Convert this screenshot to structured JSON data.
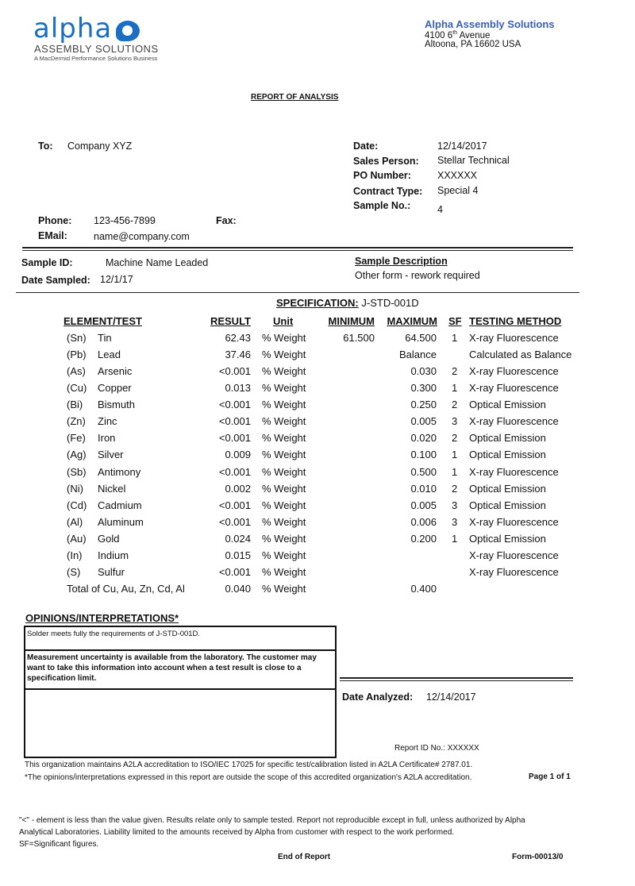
{
  "header": {
    "logo": {
      "word": "alpha",
      "sub": "ASSEMBLY SOLUTIONS",
      "tagline": "A MacDermid Performance Solutions Business"
    },
    "company": "Alpha Assembly Solutions",
    "address_line1_pre": "4100 6",
    "address_line1_sup": "th",
    "address_line1_post": " Avenue",
    "address_line2": "Altoona, PA 16602 USA",
    "brand_color": "#1a6fc4"
  },
  "title": "REPORT OF ANALYSIS",
  "customer": {
    "to_label": "To:",
    "to": "Company XYZ",
    "phone_label": "Phone:",
    "phone": "123-456-7899",
    "fax_label": "Fax:",
    "email_label": "EMail:",
    "email": "name@company.com"
  },
  "info": {
    "date_label": "Date:",
    "date": "12/14/2017",
    "sales_label": "Sales Person:",
    "sales": "Stellar Technical",
    "po_label": "PO Number:",
    "po": "XXXXXX",
    "contract_label": "Contract Type:",
    "contract": "Special 4",
    "sample_no_label": "Sample No.:",
    "sample_no": "4"
  },
  "sample": {
    "id_label": "Sample ID:",
    "id": "Machine Name Leaded",
    "date_label": "Date Sampled:",
    "date": "12/1/17",
    "desc_label": "Sample Description",
    "desc": "Other form - rework required"
  },
  "spec": {
    "label": "SPECIFICATION:",
    "value": "J-STD-001D"
  },
  "table": {
    "headers": [
      "ELEMENT/TEST",
      "RESULT",
      "Unit",
      "MINIMUM",
      "MAXIMUM",
      "SF",
      "TESTING METHOD"
    ],
    "rows": [
      {
        "code": "(Sn)",
        "name": "Tin",
        "result": "62.43",
        "unit": "% Weight",
        "min": "61.500",
        "max": "64.500",
        "sf": "1",
        "method": "X-ray Fluorescence"
      },
      {
        "code": "(Pb)",
        "name": "Lead",
        "result": "37.46",
        "unit": "% Weight",
        "min": "",
        "max": "Balance",
        "sf": "",
        "method": "Calculated as Balance"
      },
      {
        "code": "(As)",
        "name": "Arsenic",
        "result": "<0.001",
        "unit": "% Weight",
        "min": "",
        "max": "0.030",
        "sf": "2",
        "method": "X-ray Fluorescence"
      },
      {
        "code": "(Cu)",
        "name": "Copper",
        "result": "0.013",
        "unit": "% Weight",
        "min": "",
        "max": "0.300",
        "sf": "1",
        "method": "X-ray Fluorescence"
      },
      {
        "code": "(Bi)",
        "name": "Bismuth",
        "result": "<0.001",
        "unit": "% Weight",
        "min": "",
        "max": "0.250",
        "sf": "2",
        "method": "Optical Emission"
      },
      {
        "code": "(Zn)",
        "name": "Zinc",
        "result": "<0.001",
        "unit": "% Weight",
        "min": "",
        "max": "0.005",
        "sf": "3",
        "method": "X-ray Fluorescence"
      },
      {
        "code": "(Fe)",
        "name": "Iron",
        "result": "<0.001",
        "unit": "% Weight",
        "min": "",
        "max": "0.020",
        "sf": "2",
        "method": "Optical Emission"
      },
      {
        "code": "(Ag)",
        "name": "Silver",
        "result": "0.009",
        "unit": "% Weight",
        "min": "",
        "max": "0.100",
        "sf": "1",
        "method": "Optical Emission"
      },
      {
        "code": "(Sb)",
        "name": "Antimony",
        "result": "<0.001",
        "unit": "% Weight",
        "min": "",
        "max": "0.500",
        "sf": "1",
        "method": "X-ray Fluorescence"
      },
      {
        "code": "(Ni)",
        "name": "Nickel",
        "result": "0.002",
        "unit": "% Weight",
        "min": "",
        "max": "0.010",
        "sf": "2",
        "method": "Optical Emission"
      },
      {
        "code": "(Cd)",
        "name": "Cadmium",
        "result": "<0.001",
        "unit": "% Weight",
        "min": "",
        "max": "0.005",
        "sf": "3",
        "method": "Optical Emission"
      },
      {
        "code": "(Al)",
        "name": "Aluminum",
        "result": "<0.001",
        "unit": "% Weight",
        "min": "",
        "max": "0.006",
        "sf": "3",
        "method": "X-ray Fluorescence"
      },
      {
        "code": "(Au)",
        "name": "Gold",
        "result": "0.024",
        "unit": "% Weight",
        "min": "",
        "max": "0.200",
        "sf": "1",
        "method": "Optical Emission"
      },
      {
        "code": "(In)",
        "name": "Indium",
        "result": "0.015",
        "unit": "% Weight",
        "min": "",
        "max": "",
        "sf": "",
        "method": "X-ray Fluorescence"
      },
      {
        "code": "(S)",
        "name": "Sulfur",
        "result": "<0.001",
        "unit": "% Weight",
        "min": "",
        "max": "",
        "sf": "",
        "method": "X-ray Fluorescence"
      },
      {
        "code": "",
        "name": "Total of Cu, Au, Zn, Cd, Al",
        "result": "0.040",
        "unit": "% Weight",
        "min": "",
        "max": "0.400",
        "sf": "",
        "method": ""
      }
    ]
  },
  "opinions": {
    "title": "OPINIONS/INTERPRETATIONS*",
    "line1": "Solder meets fully the requirements of J-STD-001D.",
    "line2": "Measurement uncertainty is available from the laboratory. The customer may want to take this information into account when a test result is close to a specification limit."
  },
  "analysis": {
    "date_label": "Date Analyzed:",
    "date": "12/14/2017",
    "report_id": "Report ID No.: XXXXXX"
  },
  "footer": {
    "accreditation": "This organization maintains A2LA accreditation to ISO/IEC 17025 for specific test/calibration listed in A2LA Certificate# 2787.01. *The opinions/interpretations expressed in this report are outside the scope of this accredited organization's A2LA accreditation.",
    "page": "Page 1 of 1",
    "disclaimer": "\"<\" - element is less than the value given.  Results relate only to sample tested.  Report not reproducible except in full, unless authorized by Alpha Analytical Laboratories.  Liability limited to the amounts received by Alpha from customer with respect to the work performed.",
    "sf_note": "SF=Significant figures.",
    "end": "End of Report",
    "form": "Form-00013/0"
  }
}
